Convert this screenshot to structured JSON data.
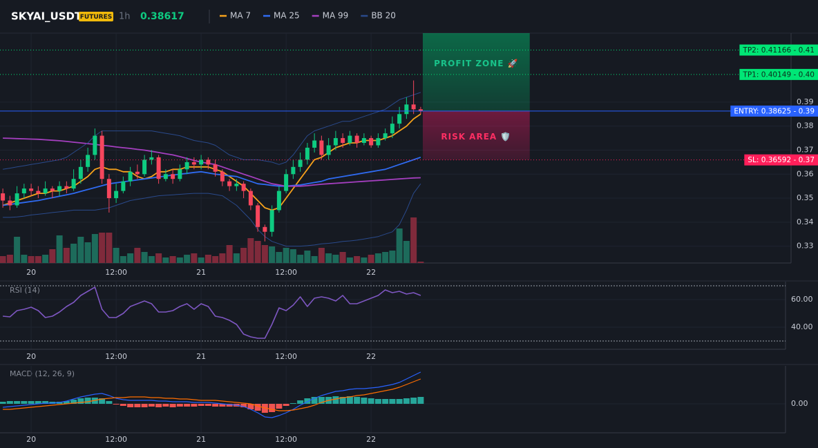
{
  "chart_data": [
    {
      "type": "candlestick",
      "title": "SKYAI_USDT",
      "badge": "FUTURES",
      "interval": "1h",
      "last_price": 0.38617,
      "up_color": "#0ecb81",
      "down_color": "#f6465d",
      "x": [
        -4,
        -3,
        -2,
        -1,
        0,
        1,
        2,
        3,
        4,
        5,
        6,
        7,
        8,
        9,
        10,
        11,
        12,
        13,
        14,
        15,
        16,
        17,
        18,
        19,
        20,
        21,
        22,
        23,
        24,
        25,
        26,
        27,
        28,
        29,
        30,
        31,
        32,
        33,
        34,
        35,
        36,
        37,
        38,
        39,
        40,
        41,
        42,
        43,
        44,
        45,
        46,
        47,
        48,
        49,
        50,
        51,
        52,
        53,
        54,
        55
      ],
      "open": [
        0.352,
        0.349,
        0.347,
        0.352,
        0.354,
        0.353,
        0.352,
        0.354,
        0.353,
        0.355,
        0.354,
        0.358,
        0.363,
        0.368,
        0.376,
        0.358,
        0.35,
        0.353,
        0.357,
        0.361,
        0.36,
        0.366,
        0.367,
        0.358,
        0.36,
        0.358,
        0.362,
        0.365,
        0.364,
        0.366,
        0.364,
        0.361,
        0.357,
        0.355,
        0.356,
        0.353,
        0.347,
        0.338,
        0.336,
        0.345,
        0.353,
        0.36,
        0.363,
        0.366,
        0.371,
        0.374,
        0.368,
        0.372,
        0.375,
        0.373,
        0.376,
        0.373,
        0.375,
        0.372,
        0.375,
        0.377,
        0.381,
        0.385,
        0.389,
        0.387
      ],
      "high": [
        0.354,
        0.351,
        0.355,
        0.356,
        0.356,
        0.355,
        0.357,
        0.355,
        0.357,
        0.357,
        0.362,
        0.366,
        0.371,
        0.379,
        0.378,
        0.36,
        0.356,
        0.359,
        0.363,
        0.364,
        0.368,
        0.37,
        0.368,
        0.362,
        0.362,
        0.364,
        0.367,
        0.367,
        0.368,
        0.367,
        0.366,
        0.362,
        0.358,
        0.358,
        0.357,
        0.354,
        0.348,
        0.339,
        0.347,
        0.355,
        0.362,
        0.366,
        0.369,
        0.373,
        0.377,
        0.376,
        0.375,
        0.378,
        0.377,
        0.378,
        0.377,
        0.377,
        0.376,
        0.377,
        0.379,
        0.384,
        0.388,
        0.392,
        0.399,
        0.388
      ],
      "low": [
        0.346,
        0.345,
        0.346,
        0.35,
        0.351,
        0.35,
        0.351,
        0.35,
        0.351,
        0.352,
        0.353,
        0.356,
        0.361,
        0.366,
        0.356,
        0.344,
        0.348,
        0.352,
        0.355,
        0.358,
        0.359,
        0.364,
        0.356,
        0.357,
        0.356,
        0.357,
        0.36,
        0.362,
        0.362,
        0.362,
        0.359,
        0.355,
        0.353,
        0.353,
        0.35,
        0.345,
        0.336,
        0.332,
        0.334,
        0.344,
        0.352,
        0.358,
        0.361,
        0.364,
        0.369,
        0.366,
        0.366,
        0.37,
        0.371,
        0.372,
        0.371,
        0.372,
        0.371,
        0.371,
        0.374,
        0.375,
        0.379,
        0.383,
        0.385,
        0.385
      ],
      "close": [
        0.349,
        0.347,
        0.352,
        0.354,
        0.353,
        0.352,
        0.354,
        0.353,
        0.355,
        0.354,
        0.358,
        0.363,
        0.368,
        0.376,
        0.358,
        0.35,
        0.353,
        0.357,
        0.361,
        0.36,
        0.366,
        0.367,
        0.358,
        0.36,
        0.358,
        0.362,
        0.365,
        0.364,
        0.366,
        0.364,
        0.361,
        0.357,
        0.355,
        0.356,
        0.353,
        0.347,
        0.338,
        0.336,
        0.345,
        0.353,
        0.36,
        0.363,
        0.366,
        0.371,
        0.374,
        0.368,
        0.372,
        0.375,
        0.373,
        0.376,
        0.373,
        0.375,
        0.372,
        0.375,
        0.377,
        0.381,
        0.385,
        0.389,
        0.387,
        0.3862
      ],
      "volume": {
        "up_color": "#1d6b5b",
        "down_color": "#7f2a3b",
        "lim": [
          0,
          100
        ],
        "values": [
          10,
          12,
          38,
          12,
          10,
          10,
          12,
          20,
          40,
          22,
          28,
          38,
          30,
          42,
          44,
          44,
          22,
          10,
          14,
          22,
          16,
          10,
          14,
          8,
          10,
          8,
          12,
          14,
          8,
          12,
          10,
          14,
          26,
          14,
          22,
          36,
          32,
          26,
          24,
          16,
          22,
          20,
          12,
          18,
          10,
          22,
          14,
          12,
          16,
          8,
          10,
          8,
          12,
          14,
          16,
          18,
          50,
          32,
          66,
          2
        ]
      },
      "series": [
        {
          "name": "MA 7",
          "color": "#f7a21b",
          "values": [
            0.347,
            0.348,
            0.349,
            0.35,
            0.351,
            0.352,
            0.352,
            0.353,
            0.353,
            0.354,
            0.355,
            0.357,
            0.359,
            0.362,
            0.363,
            0.362,
            0.362,
            0.361,
            0.361,
            0.359,
            0.358,
            0.359,
            0.361,
            0.361,
            0.362,
            0.362,
            0.363,
            0.363,
            0.363,
            0.363,
            0.362,
            0.361,
            0.359,
            0.357,
            0.355,
            0.352,
            0.349,
            0.346,
            0.345,
            0.346,
            0.35,
            0.354,
            0.358,
            0.362,
            0.366,
            0.367,
            0.369,
            0.371,
            0.372,
            0.373,
            0.373,
            0.374,
            0.374,
            0.374,
            0.375,
            0.376,
            0.378,
            0.38,
            0.383,
            0.385
          ]
        },
        {
          "name": "MA 25",
          "color": "#2f6bf2",
          "values": [
            0.347,
            0.3474,
            0.3478,
            0.3482,
            0.3486,
            0.349,
            0.3496,
            0.3502,
            0.3508,
            0.3514,
            0.352,
            0.3528,
            0.3536,
            0.3544,
            0.3552,
            0.356,
            0.3564,
            0.3568,
            0.3572,
            0.3576,
            0.358,
            0.3584,
            0.3588,
            0.3592,
            0.3596,
            0.36,
            0.3603,
            0.3607,
            0.361,
            0.3605,
            0.36,
            0.3597,
            0.3593,
            0.359,
            0.358,
            0.357,
            0.356,
            0.3557,
            0.3553,
            0.355,
            0.355,
            0.3553,
            0.3555,
            0.356,
            0.3565,
            0.357,
            0.358,
            0.3585,
            0.359,
            0.3595,
            0.36,
            0.3605,
            0.361,
            0.3615,
            0.362,
            0.363,
            0.364,
            0.365,
            0.366,
            0.367
          ]
        },
        {
          "name": "MA 99",
          "color": "#a53fc0",
          "values": [
            0.375,
            0.3749,
            0.3748,
            0.3747,
            0.3746,
            0.3745,
            0.3743,
            0.3741,
            0.3739,
            0.3736,
            0.3733,
            0.373,
            0.3727,
            0.3724,
            0.372,
            0.3717,
            0.3713,
            0.371,
            0.3707,
            0.3703,
            0.37,
            0.3695,
            0.369,
            0.3685,
            0.368,
            0.3673,
            0.3665,
            0.3657,
            0.365,
            0.3645,
            0.364,
            0.363,
            0.362,
            0.361,
            0.36,
            0.359,
            0.358,
            0.357,
            0.356,
            0.3555,
            0.355,
            0.355,
            0.355,
            0.3552,
            0.3555,
            0.3558,
            0.356,
            0.3562,
            0.3564,
            0.3566,
            0.3568,
            0.357,
            0.3572,
            0.3574,
            0.3576,
            0.3578,
            0.358,
            0.3582,
            0.3584,
            0.3585
          ]
        },
        {
          "name": "BB 20",
          "color": "#2a4a8c",
          "upper": [
            0.362,
            0.3625,
            0.363,
            0.3635,
            0.364,
            0.3645,
            0.365,
            0.3655,
            0.366,
            0.367,
            0.369,
            0.371,
            0.373,
            0.376,
            0.378,
            0.378,
            0.378,
            0.378,
            0.378,
            0.378,
            0.378,
            0.378,
            0.3775,
            0.377,
            0.3765,
            0.376,
            0.375,
            0.374,
            0.3735,
            0.373,
            0.372,
            0.37,
            0.368,
            0.367,
            0.366,
            0.366,
            0.366,
            0.3655,
            0.365,
            0.364,
            0.365,
            0.368,
            0.372,
            0.376,
            0.378,
            0.379,
            0.38,
            0.381,
            0.382,
            0.382,
            0.383,
            0.384,
            0.385,
            0.386,
            0.387,
            0.389,
            0.391,
            0.392,
            0.393,
            0.394
          ],
          "lower": [
            0.342,
            0.342,
            0.3422,
            0.3425,
            0.343,
            0.3433,
            0.3436,
            0.344,
            0.3443,
            0.3446,
            0.345,
            0.345,
            0.345,
            0.345,
            0.3455,
            0.346,
            0.347,
            0.348,
            0.349,
            0.3495,
            0.35,
            0.3505,
            0.351,
            0.3512,
            0.3514,
            0.3516,
            0.3518,
            0.352,
            0.352,
            0.352,
            0.3515,
            0.351,
            0.349,
            0.347,
            0.344,
            0.341,
            0.337,
            0.334,
            0.332,
            0.331,
            0.33,
            0.33,
            0.33,
            0.3302,
            0.3305,
            0.331,
            0.3312,
            0.3315,
            0.332,
            0.3322,
            0.3325,
            0.333,
            0.3335,
            0.334,
            0.335,
            0.336,
            0.339,
            0.345,
            0.352,
            0.356
          ]
        }
      ],
      "xlim": [
        -4.4,
        107.3
      ],
      "xticks": [
        {
          "value": 0,
          "label": "20"
        },
        {
          "value": 12,
          "label": "12:00"
        },
        {
          "value": 24,
          "label": "21"
        },
        {
          "value": 36,
          "label": "12:00"
        },
        {
          "value": 48,
          "label": "22"
        }
      ],
      "ylim": [
        0.323,
        0.4187
      ],
      "yticks": [
        0.33,
        0.34,
        0.35,
        0.36,
        0.37,
        0.38,
        0.39
      ],
      "grid": true,
      "levels": [
        {
          "label": "TP2: 0.41166 - 0.41",
          "value": 0.41166,
          "color": "#00e676",
          "style": "dotted"
        },
        {
          "label": "TP1: 0.40149 - 0.40",
          "value": 0.40149,
          "color": "#00e676",
          "style": "dotted"
        },
        {
          "label": "ENTRY: 0.38625 - 0.39",
          "value": 0.38625,
          "color": "#2962ff",
          "style": "solid"
        },
        {
          "label": "SL: 0.36592 - 0.37",
          "value": 0.36592,
          "color": "#ff1f5a",
          "style": "dotted"
        }
      ],
      "zones": [
        {
          "label": "PROFIT ZONE 🚀",
          "from": 0.38625,
          "to": 0.4187,
          "x": [
            55.3,
            70.4
          ],
          "color": "#00c875",
          "text_color": "#19c38a"
        },
        {
          "label": "RISK AREA 🛡️",
          "from": 0.36592,
          "to": 0.38625,
          "x": [
            55.3,
            70.4
          ],
          "color": "#d81b60",
          "text_color": "#ff2e63"
        }
      ]
    },
    {
      "type": "line",
      "title": "RSI (14)",
      "color": "#7e57c2",
      "values": [
        48,
        47.5,
        52,
        53,
        54.5,
        52,
        47,
        48,
        51,
        55,
        58,
        63,
        66,
        69,
        53,
        47,
        47,
        50,
        55,
        57,
        59,
        57,
        51,
        51,
        52,
        55,
        57,
        53,
        57,
        55,
        48,
        47,
        45,
        42,
        35,
        33,
        32,
        32,
        42,
        54,
        52,
        56,
        62,
        55,
        61,
        62,
        61,
        59,
        63,
        57,
        57,
        59,
        61,
        63,
        67,
        65,
        66,
        64,
        65,
        63
      ],
      "ylim": [
        24,
        73
      ],
      "yticks": [
        {
          "value": 40,
          "label": "40.00"
        },
        {
          "value": 60,
          "label": "60.00"
        }
      ],
      "bands": [
        30,
        70
      ]
    },
    {
      "type": "macd",
      "title": "MACD (12, 26, 9)",
      "histogram": {
        "up_color": "#26a69a",
        "down_color": "#ef5350",
        "values": [
          0.0003,
          0.0004,
          0.0004,
          0.0004,
          0.0004,
          0.0004,
          0.0004,
          0.0003,
          0.0003,
          0.0004,
          0.0006,
          0.0008,
          0.0009,
          0.0009,
          0.0008,
          0.0004,
          -0.0001,
          -0.0003,
          -0.0005,
          -0.0005,
          -0.0005,
          -0.0004,
          -0.0005,
          -0.0004,
          -0.0005,
          -0.0004,
          -0.0004,
          -0.0004,
          -0.0003,
          -0.0003,
          -0.0004,
          -0.0004,
          -0.0004,
          -0.0004,
          -0.0005,
          -0.0008,
          -0.001,
          -0.0013,
          -0.0012,
          -0.0007,
          -0.0003,
          0.0001,
          0.0005,
          0.0008,
          0.001,
          0.001,
          0.001,
          0.0011,
          0.001,
          0.0011,
          0.001,
          0.0009,
          0.0008,
          0.0007,
          0.0007,
          0.0007,
          0.0007,
          0.0008,
          0.0009,
          0.001
        ]
      },
      "macd": {
        "color": "#2962ff",
        "values": [
          -0.0005,
          -0.0004,
          -0.0003,
          -0.0002,
          -0.0001,
          0,
          0.0001,
          0.0001,
          0.0002,
          0.0004,
          0.0007,
          0.001,
          0.0012,
          0.0014,
          0.0015,
          0.0012,
          0.0008,
          0.0006,
          0.0005,
          0.0005,
          0.0005,
          0.0005,
          0.0004,
          0.0004,
          0.0003,
          0.0003,
          0.0003,
          0.0002,
          0.0002,
          0.0002,
          0.0001,
          0,
          -0.0001,
          -0.0002,
          -0.0004,
          -0.0008,
          -0.0013,
          -0.0019,
          -0.002,
          -0.0017,
          -0.0013,
          -0.0008,
          -0.0002,
          0.0003,
          0.0008,
          0.0012,
          0.0015,
          0.0018,
          0.0019,
          0.0021,
          0.0022,
          0.0022,
          0.0023,
          0.0024,
          0.0026,
          0.0028,
          0.0031,
          0.0036,
          0.0041,
          0.0046
        ]
      },
      "signal": {
        "color": "#ff6d00",
        "values": [
          -0.0008,
          -0.0008,
          -0.0007,
          -0.0006,
          -0.0005,
          -0.0004,
          -0.0003,
          -0.0002,
          -0.0001,
          0,
          0.0001,
          0.0002,
          0.0003,
          0.0005,
          0.0007,
          0.0008,
          0.0009,
          0.0009,
          0.001,
          0.001,
          0.001,
          0.0009,
          0.0009,
          0.0008,
          0.0008,
          0.0007,
          0.0007,
          0.0006,
          0.0005,
          0.0005,
          0.0005,
          0.0004,
          0.0003,
          0.0002,
          0.0001,
          0,
          -0.0003,
          -0.0006,
          -0.0008,
          -0.001,
          -0.001,
          -0.0009,
          -0.0007,
          -0.0005,
          -0.0002,
          0.0002,
          0.0005,
          0.0007,
          0.0009,
          0.001,
          0.0012,
          0.0013,
          0.0015,
          0.0017,
          0.0019,
          0.0021,
          0.0024,
          0.0028,
          0.0032,
          0.0036
        ]
      },
      "ylim": [
        -0.0042,
        0.0055
      ],
      "yticks": [
        {
          "value": 0,
          "label": "0.00"
        }
      ]
    }
  ]
}
